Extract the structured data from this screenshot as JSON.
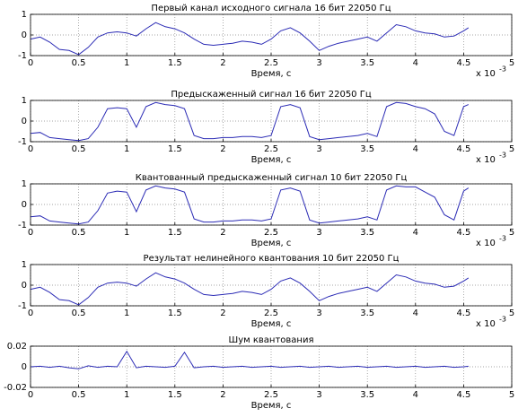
{
  "chart_data": [
    {
      "type": "line",
      "title": "Первый канал исходного сигнала 16 бит 22050 Гц",
      "x_label": "Время, с",
      "x_scale_label": "x 10",
      "x_scale_exponent": "-3",
      "x": [
        0,
        0.1,
        0.2,
        0.3,
        0.4,
        0.5,
        0.6,
        0.7,
        0.8,
        0.9,
        1,
        1.1,
        1.2,
        1.3,
        1.4,
        1.5,
        1.6,
        1.7,
        1.8,
        1.9,
        2,
        2.1,
        2.2,
        2.3,
        2.4,
        2.5,
        2.6,
        2.7,
        2.8,
        2.9,
        3,
        3.1,
        3.2,
        3.3,
        3.4,
        3.5,
        3.6,
        3.7,
        3.8,
        3.9,
        4,
        4.1,
        4.2,
        4.3,
        4.4,
        4.5,
        4.55
      ],
      "values": [
        -0.2,
        -0.1,
        -0.35,
        -0.7,
        -0.75,
        -0.95,
        -0.6,
        -0.1,
        0.1,
        0.15,
        0.1,
        -0.05,
        0.3,
        0.6,
        0.4,
        0.3,
        0.1,
        -0.2,
        -0.45,
        -0.5,
        -0.45,
        -0.4,
        -0.3,
        -0.35,
        -0.45,
        -0.2,
        0.2,
        0.35,
        0.1,
        -0.3,
        -0.75,
        -0.55,
        -0.4,
        -0.3,
        -0.2,
        -0.1,
        -0.3,
        0.1,
        0.5,
        0.4,
        0.2,
        0.1,
        0.05,
        -0.1,
        -0.05,
        0.2,
        0.35
      ],
      "color": "#2b2bb5",
      "xlim": [
        0,
        5
      ],
      "ylim": [
        -1,
        1
      ],
      "xticks": [
        0,
        0.5,
        1,
        1.5,
        2,
        2.5,
        3,
        3.5,
        4,
        4.5,
        5
      ],
      "yticks": [
        -1,
        0,
        1
      ],
      "grid": true
    },
    {
      "type": "line",
      "title": "Предыскаженный сигнал 16 бит 22050 Гц",
      "x_label": "Время, с",
      "x_scale_label": "x 10",
      "x_scale_exponent": "-3",
      "x": [
        0,
        0.1,
        0.2,
        0.3,
        0.4,
        0.5,
        0.6,
        0.7,
        0.8,
        0.9,
        1,
        1.1,
        1.2,
        1.3,
        1.4,
        1.5,
        1.6,
        1.7,
        1.8,
        1.9,
        2,
        2.1,
        2.2,
        2.3,
        2.4,
        2.5,
        2.6,
        2.7,
        2.8,
        2.9,
        3,
        3.1,
        3.2,
        3.3,
        3.4,
        3.5,
        3.6,
        3.7,
        3.8,
        3.9,
        4,
        4.1,
        4.2,
        4.3,
        4.4,
        4.5,
        4.55
      ],
      "values": [
        -0.6,
        -0.55,
        -0.8,
        -0.85,
        -0.9,
        -0.95,
        -0.85,
        -0.3,
        0.6,
        0.65,
        0.6,
        -0.3,
        0.7,
        0.9,
        0.8,
        0.75,
        0.6,
        -0.7,
        -0.85,
        -0.85,
        -0.8,
        -0.8,
        -0.75,
        -0.75,
        -0.8,
        -0.7,
        0.7,
        0.8,
        0.65,
        -0.75,
        -0.9,
        -0.85,
        -0.8,
        -0.75,
        -0.7,
        -0.6,
        -0.75,
        0.7,
        0.9,
        0.85,
        0.7,
        0.6,
        0.35,
        -0.5,
        -0.7,
        0.7,
        0.8
      ],
      "color": "#2b2bb5",
      "xlim": [
        0,
        5
      ],
      "ylim": [
        -1,
        1
      ],
      "xticks": [
        0,
        0.5,
        1,
        1.5,
        2,
        2.5,
        3,
        3.5,
        4,
        4.5,
        5
      ],
      "yticks": [
        -1,
        0,
        1
      ],
      "grid": true
    },
    {
      "type": "line",
      "title": "Квантованный предыскаженный сигнал 10 бит 22050 Гц",
      "x_label": "Время, с",
      "x_scale_label": "x 10",
      "x_scale_exponent": "-3",
      "x": [
        0,
        0.1,
        0.2,
        0.3,
        0.4,
        0.5,
        0.6,
        0.7,
        0.8,
        0.9,
        1,
        1.1,
        1.2,
        1.3,
        1.4,
        1.5,
        1.6,
        1.7,
        1.8,
        1.9,
        2,
        2.1,
        2.2,
        2.3,
        2.4,
        2.5,
        2.6,
        2.7,
        2.8,
        2.9,
        3,
        3.1,
        3.2,
        3.3,
        3.4,
        3.5,
        3.6,
        3.7,
        3.8,
        3.9,
        4,
        4.1,
        4.2,
        4.3,
        4.4,
        4.5,
        4.55
      ],
      "values": [
        -0.6,
        -0.55,
        -0.8,
        -0.85,
        -0.9,
        -0.95,
        -0.85,
        -0.3,
        0.55,
        0.65,
        0.6,
        -0.35,
        0.7,
        0.9,
        0.8,
        0.75,
        0.6,
        -0.7,
        -0.85,
        -0.85,
        -0.8,
        -0.8,
        -0.75,
        -0.75,
        -0.8,
        -0.7,
        0.7,
        0.8,
        0.65,
        -0.75,
        -0.9,
        -0.85,
        -0.8,
        -0.75,
        -0.7,
        -0.6,
        -0.75,
        0.7,
        0.9,
        0.85,
        0.85,
        0.6,
        0.35,
        -0.5,
        -0.75,
        0.65,
        0.8
      ],
      "color": "#2b2bb5",
      "xlim": [
        0,
        5
      ],
      "ylim": [
        -1,
        1
      ],
      "xticks": [
        0,
        0.5,
        1,
        1.5,
        2,
        2.5,
        3,
        3.5,
        4,
        4.5,
        5
      ],
      "yticks": [
        -1,
        0,
        1
      ],
      "grid": true
    },
    {
      "type": "line",
      "title": "Результат нелинейного квантования 10 бит 22050 Гц",
      "x_label": "Время, с",
      "x_scale_label": "x 10",
      "x_scale_exponent": "-3",
      "x": [
        0,
        0.1,
        0.2,
        0.3,
        0.4,
        0.5,
        0.6,
        0.7,
        0.8,
        0.9,
        1,
        1.1,
        1.2,
        1.3,
        1.4,
        1.5,
        1.6,
        1.7,
        1.8,
        1.9,
        2,
        2.1,
        2.2,
        2.3,
        2.4,
        2.5,
        2.6,
        2.7,
        2.8,
        2.9,
        3,
        3.1,
        3.2,
        3.3,
        3.4,
        3.5,
        3.6,
        3.7,
        3.8,
        3.9,
        4,
        4.1,
        4.2,
        4.3,
        4.4,
        4.5,
        4.55
      ],
      "values": [
        -0.2,
        -0.1,
        -0.35,
        -0.7,
        -0.75,
        -0.95,
        -0.6,
        -0.1,
        0.1,
        0.15,
        0.1,
        -0.05,
        0.3,
        0.6,
        0.4,
        0.3,
        0.1,
        -0.2,
        -0.45,
        -0.5,
        -0.45,
        -0.4,
        -0.3,
        -0.35,
        -0.45,
        -0.2,
        0.2,
        0.35,
        0.1,
        -0.3,
        -0.75,
        -0.55,
        -0.4,
        -0.3,
        -0.2,
        -0.1,
        -0.3,
        0.1,
        0.5,
        0.4,
        0.2,
        0.1,
        0.05,
        -0.1,
        -0.05,
        0.2,
        0.35
      ],
      "color": "#2b2bb5",
      "xlim": [
        0,
        5
      ],
      "ylim": [
        -1,
        1
      ],
      "xticks": [
        0,
        0.5,
        1,
        1.5,
        2,
        2.5,
        3,
        3.5,
        4,
        4.5,
        5
      ],
      "yticks": [
        -1,
        0,
        1
      ],
      "grid": true
    },
    {
      "type": "line",
      "title": "Шум квантования",
      "x_label": "Время, с",
      "x": [
        0,
        0.1,
        0.2,
        0.3,
        0.4,
        0.5,
        0.6,
        0.7,
        0.8,
        0.9,
        1,
        1.1,
        1.2,
        1.3,
        1.4,
        1.5,
        1.6,
        1.7,
        1.8,
        1.9,
        2,
        2.1,
        2.2,
        2.3,
        2.4,
        2.5,
        2.6,
        2.7,
        2.8,
        2.9,
        3,
        3.1,
        3.2,
        3.3,
        3.4,
        3.5,
        3.6,
        3.7,
        3.8,
        3.9,
        4,
        4.1,
        4.2,
        4.3,
        4.4,
        4.5,
        4.55
      ],
      "values": [
        0,
        0.0005,
        -0.0005,
        0.0005,
        -0.001,
        -0.002,
        0.001,
        -0.0005,
        0.0005,
        0,
        0.015,
        -0.001,
        0.0005,
        0,
        -0.0005,
        0.0005,
        0.014,
        -0.001,
        0,
        0.0005,
        -0.0005,
        0,
        0.0005,
        -0.0005,
        0,
        0.0005,
        -0.0005,
        0,
        0.0005,
        -0.0005,
        0,
        0.0005,
        -0.0005,
        0,
        0.0005,
        -0.0005,
        0,
        0.0005,
        -0.0005,
        0,
        0.0005,
        -0.0005,
        0,
        0.0005,
        -0.0005,
        0,
        0.0005
      ],
      "color": "#2b2bb5",
      "xlim": [
        0,
        5
      ],
      "ylim": [
        -0.02,
        0.02
      ],
      "xticks": [
        0,
        0.5,
        1,
        1.5,
        2,
        2.5,
        3,
        3.5,
        4,
        4.5,
        5
      ],
      "yticks": [
        -0.02,
        0,
        0.02
      ],
      "grid": true
    }
  ]
}
